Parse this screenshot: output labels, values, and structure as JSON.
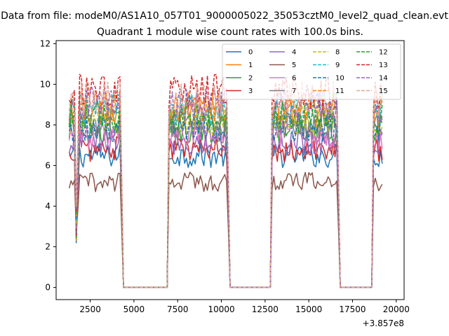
{
  "chart_data": {
    "type": "line",
    "suptitle": "Data from file: modeM0/AS1A10_057T01_9000005022_35053cztM0_level2_quad_clean.evt",
    "title": "Quadrant 1 module wise count rates with 100.0s bins.",
    "xlabel": "",
    "ylabel": "",
    "x_offset_text": "+3.857e8",
    "xlim": [
      550,
      20450
    ],
    "ylim": [
      -0.6,
      12.15
    ],
    "x_ticks": [
      2500,
      5000,
      7500,
      10000,
      12500,
      15000,
      17500,
      20000
    ],
    "x_tick_labels": [
      "2500",
      "5000",
      "7500",
      "10000",
      "12500",
      "15000",
      "17500",
      "20000"
    ],
    "y_ticks": [
      0,
      2,
      4,
      6,
      8,
      10,
      12
    ],
    "y_tick_labels": [
      "0",
      "2",
      "4",
      "6",
      "8",
      "10",
      "12"
    ],
    "grid": false,
    "legend_position": "top-right",
    "legend_columns": 4,
    "x_step": 100,
    "segments": [
      {
        "start": 1300,
        "end": 4300,
        "peak": 4200,
        "dip": 1700
      },
      {
        "start": 7000,
        "end": 10400
      },
      {
        "start": 12900,
        "end": 16700
      },
      {
        "start": 18700,
        "end": 19200
      }
    ],
    "series": [
      {
        "name": "0",
        "level": 6.5,
        "style": "solid",
        "color": "#1f77b4"
      },
      {
        "name": "1",
        "level": 8.6,
        "style": "solid",
        "color": "#ff7f0e"
      },
      {
        "name": "2",
        "level": 7.7,
        "style": "solid",
        "color": "#2ca02c"
      },
      {
        "name": "3",
        "level": 6.8,
        "style": "solid",
        "color": "#d62728"
      },
      {
        "name": "4",
        "level": 7.2,
        "style": "solid",
        "color": "#9467bd"
      },
      {
        "name": "5",
        "level": 5.2,
        "style": "solid",
        "color": "#8c564b"
      },
      {
        "name": "6",
        "level": 7.5,
        "style": "solid",
        "color": "#e377c2"
      },
      {
        "name": "7",
        "level": 8.0,
        "style": "solid",
        "color": "#7f7f7f"
      },
      {
        "name": "8",
        "level": 8.2,
        "style": "dashed",
        "color": "#bcbd22"
      },
      {
        "name": "9",
        "level": 8.8,
        "style": "dashed",
        "color": "#17becf"
      },
      {
        "name": "10",
        "level": 7.9,
        "style": "dashed",
        "color": "#1f77b4"
      },
      {
        "name": "11",
        "level": 8.9,
        "style": "dashed",
        "color": "#ff7f0e"
      },
      {
        "name": "12",
        "level": 8.4,
        "style": "dashed",
        "color": "#2ca02c"
      },
      {
        "name": "13",
        "level": 9.6,
        "style": "dashed",
        "color": "#d62728"
      },
      {
        "name": "14",
        "level": 9.0,
        "style": "dashed",
        "color": "#9467bd"
      },
      {
        "name": "15",
        "level": 9.3,
        "style": "dashed",
        "color": "#e3a59a"
      }
    ]
  }
}
